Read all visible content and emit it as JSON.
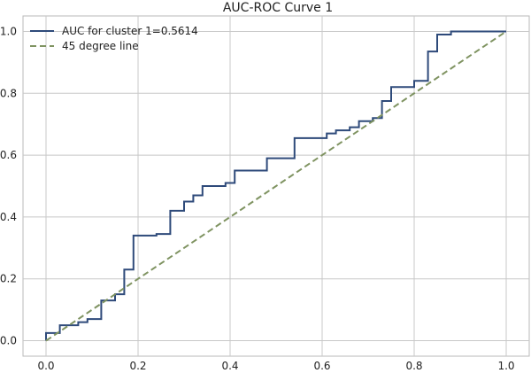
{
  "chart_data": {
    "type": "line",
    "title": "AUC-ROC Curve 1",
    "xlabel": "",
    "ylabel": "",
    "xlim": [
      -0.05,
      1.05
    ],
    "ylim": [
      -0.05,
      1.05
    ],
    "xticks": [
      0.0,
      0.2,
      0.4,
      0.6,
      0.8,
      1.0
    ],
    "yticks": [
      0.0,
      0.2,
      0.4,
      0.6,
      0.8,
      1.0
    ],
    "xtick_labels": [
      "0.0",
      "0.2",
      "0.4",
      "0.6",
      "0.8",
      "1.0"
    ],
    "ytick_labels": [
      "0.0",
      "0.2",
      "0.4",
      "0.6",
      "0.8",
      "1.0"
    ],
    "grid": true,
    "legend_position": "top-left",
    "series": [
      {
        "name": "AUC for cluster 1=0.5614",
        "style": "solid",
        "color": "#2e4a7a",
        "x": [
          0.0,
          0.0,
          0.03,
          0.03,
          0.07,
          0.07,
          0.09,
          0.09,
          0.12,
          0.12,
          0.15,
          0.15,
          0.17,
          0.17,
          0.19,
          0.19,
          0.24,
          0.24,
          0.27,
          0.27,
          0.3,
          0.3,
          0.32,
          0.32,
          0.34,
          0.34,
          0.37,
          0.37,
          0.39,
          0.39,
          0.41,
          0.41,
          0.48,
          0.48,
          0.54,
          0.54,
          0.61,
          0.61,
          0.63,
          0.63,
          0.66,
          0.66,
          0.68,
          0.68,
          0.71,
          0.71,
          0.73,
          0.73,
          0.75,
          0.75,
          0.8,
          0.8,
          0.83,
          0.83,
          0.85,
          0.85,
          0.88,
          0.88,
          1.0
        ],
        "y": [
          0.0,
          0.025,
          0.025,
          0.05,
          0.05,
          0.06,
          0.06,
          0.07,
          0.07,
          0.13,
          0.13,
          0.15,
          0.15,
          0.23,
          0.23,
          0.34,
          0.34,
          0.345,
          0.345,
          0.42,
          0.42,
          0.45,
          0.45,
          0.47,
          0.47,
          0.5,
          0.5,
          0.5,
          0.5,
          0.51,
          0.51,
          0.55,
          0.55,
          0.59,
          0.59,
          0.655,
          0.655,
          0.67,
          0.67,
          0.68,
          0.68,
          0.69,
          0.69,
          0.71,
          0.71,
          0.72,
          0.72,
          0.775,
          0.775,
          0.82,
          0.82,
          0.84,
          0.84,
          0.935,
          0.935,
          0.99,
          0.99,
          1.0,
          1.0
        ]
      },
      {
        "name": "45 degree line",
        "style": "dashed",
        "color": "#7f9361",
        "x": [
          0.0,
          1.0
        ],
        "y": [
          0.0,
          1.0
        ]
      }
    ]
  }
}
